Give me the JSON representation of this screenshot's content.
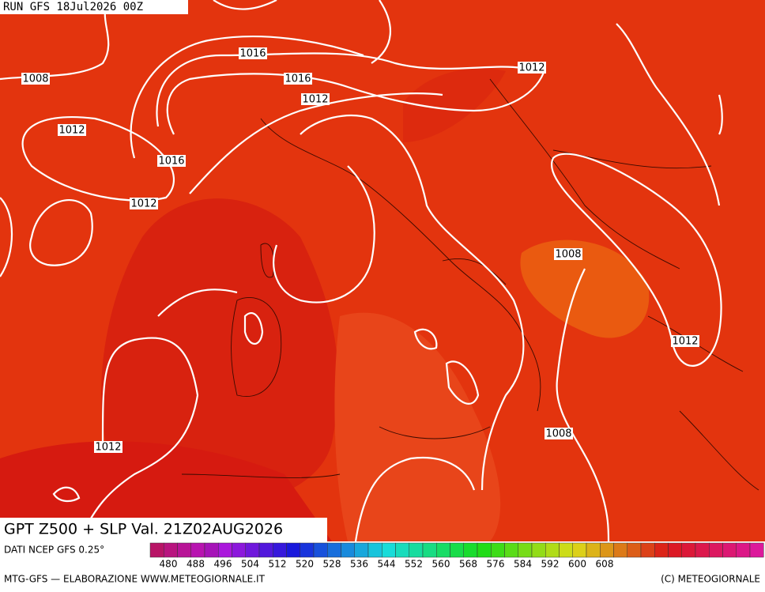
{
  "header": {
    "run": "RUN GFS 18Jul2026 00Z"
  },
  "map": {
    "isobar_labels": [
      "1008",
      "1016",
      "1016",
      "1012",
      "1012",
      "1012",
      "1016",
      "1012",
      "1008",
      "1012",
      "1008",
      "1012"
    ]
  },
  "title": "GPT Z500 + SLP Val. 21Z02AUG2026",
  "source": "DATI NCEP GFS 0.25°",
  "legend": {
    "labels": [
      480,
      488,
      496,
      504,
      512,
      520,
      528,
      536,
      544,
      552,
      560,
      568,
      576,
      584,
      592,
      600,
      608
    ]
  },
  "footer": {
    "left": "MTG-GFS — ELABORAZIONE WWW.METEOGIORNALE.IT",
    "right": "(C) METEOGIORNALE"
  }
}
